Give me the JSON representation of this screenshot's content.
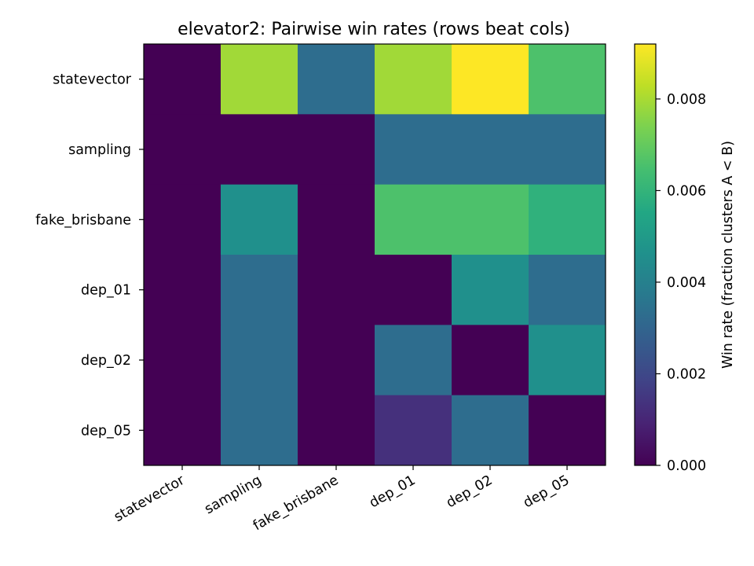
{
  "chart_data": {
    "type": "heatmap",
    "title": "elevator2: Pairwise win rates (rows beat cols)",
    "rows": [
      "statevector",
      "sampling",
      "fake_brisbane",
      "dep_01",
      "dep_02",
      "dep_05"
    ],
    "cols": [
      "statevector",
      "sampling",
      "fake_brisbane",
      "dep_01",
      "dep_02",
      "dep_05"
    ],
    "values": [
      [
        0.0,
        0.0079,
        0.0033,
        0.0079,
        0.0092,
        0.0066
      ],
      [
        0.0,
        0.0,
        0.0,
        0.0033,
        0.0033,
        0.0033
      ],
      [
        0.0,
        0.0046,
        0.0,
        0.0066,
        0.0066,
        0.0059
      ],
      [
        0.0,
        0.0033,
        0.0,
        0.0,
        0.0046,
        0.0033
      ],
      [
        0.0,
        0.0033,
        0.0,
        0.0033,
        0.0,
        0.0046
      ],
      [
        0.0,
        0.0033,
        0.0,
        0.0013,
        0.0033,
        0.0
      ]
    ],
    "colormap": "viridis",
    "colorbar": {
      "label": "Win rate (fraction clusters A < B)",
      "range": [
        0.0,
        0.0092
      ],
      "ticks": [
        0.0,
        0.002,
        0.004,
        0.006,
        0.008
      ],
      "tick_labels": [
        "0.000",
        "0.002",
        "0.004",
        "0.006",
        "0.008"
      ]
    }
  }
}
